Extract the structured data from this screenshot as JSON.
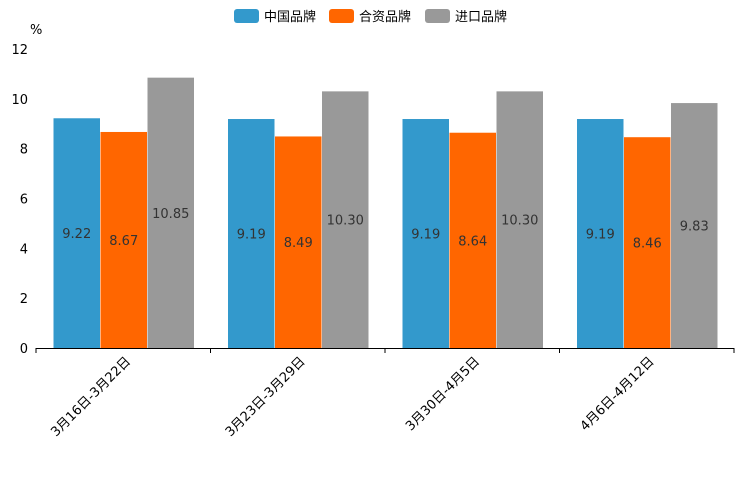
{
  "chart_data": {
    "type": "bar",
    "title": "",
    "ylabel": "%",
    "xlabel": "",
    "ylim": [
      0,
      12
    ],
    "yticks": [
      0,
      2,
      4,
      6,
      8,
      10,
      12
    ],
    "grid": false,
    "legend_position": "top-center",
    "categories": [
      "3月16日-3月22日",
      "3月23日-3月29日",
      "3月30日-4月5日",
      "4月6日-4月12日"
    ],
    "series": [
      {
        "name": "中国品牌",
        "color": "#3399cc",
        "values": [
          9.22,
          9.19,
          9.19,
          9.19
        ],
        "labels": [
          "9.22",
          "9.19",
          "9.19",
          "9.19"
        ]
      },
      {
        "name": "合资品牌",
        "color": "#ff6600",
        "values": [
          8.67,
          8.49,
          8.64,
          8.46
        ],
        "labels": [
          "8.67",
          "8.49",
          "8.64",
          "8.46"
        ]
      },
      {
        "name": "进口品牌",
        "color": "#999999",
        "values": [
          10.85,
          10.3,
          10.3,
          9.83
        ],
        "labels": [
          "10.85",
          "10.30",
          "10.30",
          "9.83"
        ]
      }
    ]
  }
}
